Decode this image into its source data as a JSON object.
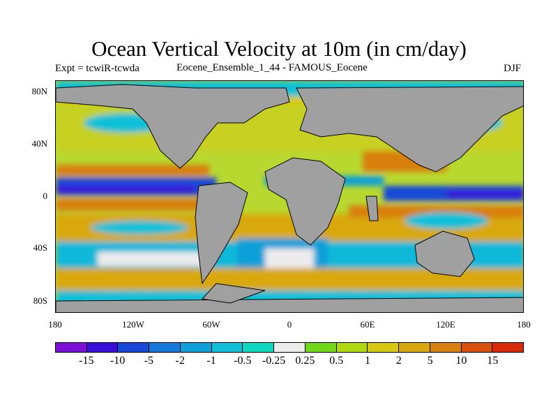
{
  "header": {
    "title": "Ocean Vertical Velocity at 10m (in cm/day)",
    "expt": "Expt = tcwiR-tcwda",
    "ensemble": "Eocene_Ensemble_1_44 - FAMOUS_Eocene",
    "season": "DJF"
  },
  "axes": {
    "y_ticks": [
      "80N",
      "40N",
      "0",
      "40S",
      "80S"
    ],
    "x_ticks": [
      "180",
      "120W",
      "60W",
      "0",
      "60E",
      "120E",
      "180"
    ]
  },
  "colorbar": {
    "colors": [
      "#7a0fd8",
      "#3a10d8",
      "#1848d8",
      "#1878d8",
      "#10a0d8",
      "#10c0d8",
      "#10d8c0",
      "#ececec",
      "#70d818",
      "#b0d810",
      "#d8c810",
      "#d8a810",
      "#d88010",
      "#d85010",
      "#d82a08"
    ],
    "labels": [
      "-15",
      "-10",
      "-5",
      "-2",
      "-1",
      "-0.5",
      "-0.25",
      "0.25",
      "0.5",
      "1",
      "2",
      "5",
      "10",
      "15"
    ]
  }
}
